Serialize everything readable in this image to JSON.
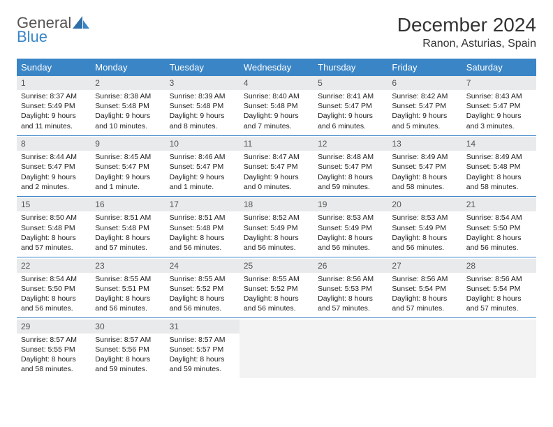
{
  "logo": {
    "text1": "General",
    "text2": "Blue"
  },
  "title": {
    "month": "December 2024",
    "location": "Ranon, Asturias, Spain"
  },
  "colors": {
    "header_bg": "#3a85c6",
    "header_text": "#ffffff",
    "daynum_bg": "#e9eaeb",
    "cell_bg": "#ffffff",
    "border": "#3a85c6",
    "text": "#222222"
  },
  "day_headers": [
    "Sunday",
    "Monday",
    "Tuesday",
    "Wednesday",
    "Thursday",
    "Friday",
    "Saturday"
  ],
  "weeks": [
    {
      "nums": [
        "1",
        "2",
        "3",
        "4",
        "5",
        "6",
        "7"
      ],
      "cells": [
        {
          "sunrise": "Sunrise: 8:37 AM",
          "sunset": "Sunset: 5:49 PM",
          "day1": "Daylight: 9 hours",
          "day2": "and 11 minutes."
        },
        {
          "sunrise": "Sunrise: 8:38 AM",
          "sunset": "Sunset: 5:48 PM",
          "day1": "Daylight: 9 hours",
          "day2": "and 10 minutes."
        },
        {
          "sunrise": "Sunrise: 8:39 AM",
          "sunset": "Sunset: 5:48 PM",
          "day1": "Daylight: 9 hours",
          "day2": "and 8 minutes."
        },
        {
          "sunrise": "Sunrise: 8:40 AM",
          "sunset": "Sunset: 5:48 PM",
          "day1": "Daylight: 9 hours",
          "day2": "and 7 minutes."
        },
        {
          "sunrise": "Sunrise: 8:41 AM",
          "sunset": "Sunset: 5:47 PM",
          "day1": "Daylight: 9 hours",
          "day2": "and 6 minutes."
        },
        {
          "sunrise": "Sunrise: 8:42 AM",
          "sunset": "Sunset: 5:47 PM",
          "day1": "Daylight: 9 hours",
          "day2": "and 5 minutes."
        },
        {
          "sunrise": "Sunrise: 8:43 AM",
          "sunset": "Sunset: 5:47 PM",
          "day1": "Daylight: 9 hours",
          "day2": "and 3 minutes."
        }
      ]
    },
    {
      "nums": [
        "8",
        "9",
        "10",
        "11",
        "12",
        "13",
        "14"
      ],
      "cells": [
        {
          "sunrise": "Sunrise: 8:44 AM",
          "sunset": "Sunset: 5:47 PM",
          "day1": "Daylight: 9 hours",
          "day2": "and 2 minutes."
        },
        {
          "sunrise": "Sunrise: 8:45 AM",
          "sunset": "Sunset: 5:47 PM",
          "day1": "Daylight: 9 hours",
          "day2": "and 1 minute."
        },
        {
          "sunrise": "Sunrise: 8:46 AM",
          "sunset": "Sunset: 5:47 PM",
          "day1": "Daylight: 9 hours",
          "day2": "and 1 minute."
        },
        {
          "sunrise": "Sunrise: 8:47 AM",
          "sunset": "Sunset: 5:47 PM",
          "day1": "Daylight: 9 hours",
          "day2": "and 0 minutes."
        },
        {
          "sunrise": "Sunrise: 8:48 AM",
          "sunset": "Sunset: 5:47 PM",
          "day1": "Daylight: 8 hours",
          "day2": "and 59 minutes."
        },
        {
          "sunrise": "Sunrise: 8:49 AM",
          "sunset": "Sunset: 5:47 PM",
          "day1": "Daylight: 8 hours",
          "day2": "and 58 minutes."
        },
        {
          "sunrise": "Sunrise: 8:49 AM",
          "sunset": "Sunset: 5:48 PM",
          "day1": "Daylight: 8 hours",
          "day2": "and 58 minutes."
        }
      ]
    },
    {
      "nums": [
        "15",
        "16",
        "17",
        "18",
        "19",
        "20",
        "21"
      ],
      "cells": [
        {
          "sunrise": "Sunrise: 8:50 AM",
          "sunset": "Sunset: 5:48 PM",
          "day1": "Daylight: 8 hours",
          "day2": "and 57 minutes."
        },
        {
          "sunrise": "Sunrise: 8:51 AM",
          "sunset": "Sunset: 5:48 PM",
          "day1": "Daylight: 8 hours",
          "day2": "and 57 minutes."
        },
        {
          "sunrise": "Sunrise: 8:51 AM",
          "sunset": "Sunset: 5:48 PM",
          "day1": "Daylight: 8 hours",
          "day2": "and 56 minutes."
        },
        {
          "sunrise": "Sunrise: 8:52 AM",
          "sunset": "Sunset: 5:49 PM",
          "day1": "Daylight: 8 hours",
          "day2": "and 56 minutes."
        },
        {
          "sunrise": "Sunrise: 8:53 AM",
          "sunset": "Sunset: 5:49 PM",
          "day1": "Daylight: 8 hours",
          "day2": "and 56 minutes."
        },
        {
          "sunrise": "Sunrise: 8:53 AM",
          "sunset": "Sunset: 5:49 PM",
          "day1": "Daylight: 8 hours",
          "day2": "and 56 minutes."
        },
        {
          "sunrise": "Sunrise: 8:54 AM",
          "sunset": "Sunset: 5:50 PM",
          "day1": "Daylight: 8 hours",
          "day2": "and 56 minutes."
        }
      ]
    },
    {
      "nums": [
        "22",
        "23",
        "24",
        "25",
        "26",
        "27",
        "28"
      ],
      "cells": [
        {
          "sunrise": "Sunrise: 8:54 AM",
          "sunset": "Sunset: 5:50 PM",
          "day1": "Daylight: 8 hours",
          "day2": "and 56 minutes."
        },
        {
          "sunrise": "Sunrise: 8:55 AM",
          "sunset": "Sunset: 5:51 PM",
          "day1": "Daylight: 8 hours",
          "day2": "and 56 minutes."
        },
        {
          "sunrise": "Sunrise: 8:55 AM",
          "sunset": "Sunset: 5:52 PM",
          "day1": "Daylight: 8 hours",
          "day2": "and 56 minutes."
        },
        {
          "sunrise": "Sunrise: 8:55 AM",
          "sunset": "Sunset: 5:52 PM",
          "day1": "Daylight: 8 hours",
          "day2": "and 56 minutes."
        },
        {
          "sunrise": "Sunrise: 8:56 AM",
          "sunset": "Sunset: 5:53 PM",
          "day1": "Daylight: 8 hours",
          "day2": "and 57 minutes."
        },
        {
          "sunrise": "Sunrise: 8:56 AM",
          "sunset": "Sunset: 5:54 PM",
          "day1": "Daylight: 8 hours",
          "day2": "and 57 minutes."
        },
        {
          "sunrise": "Sunrise: 8:56 AM",
          "sunset": "Sunset: 5:54 PM",
          "day1": "Daylight: 8 hours",
          "day2": "and 57 minutes."
        }
      ]
    },
    {
      "nums": [
        "29",
        "30",
        "31",
        "",
        "",
        "",
        ""
      ],
      "cells": [
        {
          "sunrise": "Sunrise: 8:57 AM",
          "sunset": "Sunset: 5:55 PM",
          "day1": "Daylight: 8 hours",
          "day2": "and 58 minutes."
        },
        {
          "sunrise": "Sunrise: 8:57 AM",
          "sunset": "Sunset: 5:56 PM",
          "day1": "Daylight: 8 hours",
          "day2": "and 59 minutes."
        },
        {
          "sunrise": "Sunrise: 8:57 AM",
          "sunset": "Sunset: 5:57 PM",
          "day1": "Daylight: 8 hours",
          "day2": "and 59 minutes."
        },
        {
          "empty": true
        },
        {
          "empty": true
        },
        {
          "empty": true
        },
        {
          "empty": true
        }
      ]
    }
  ]
}
